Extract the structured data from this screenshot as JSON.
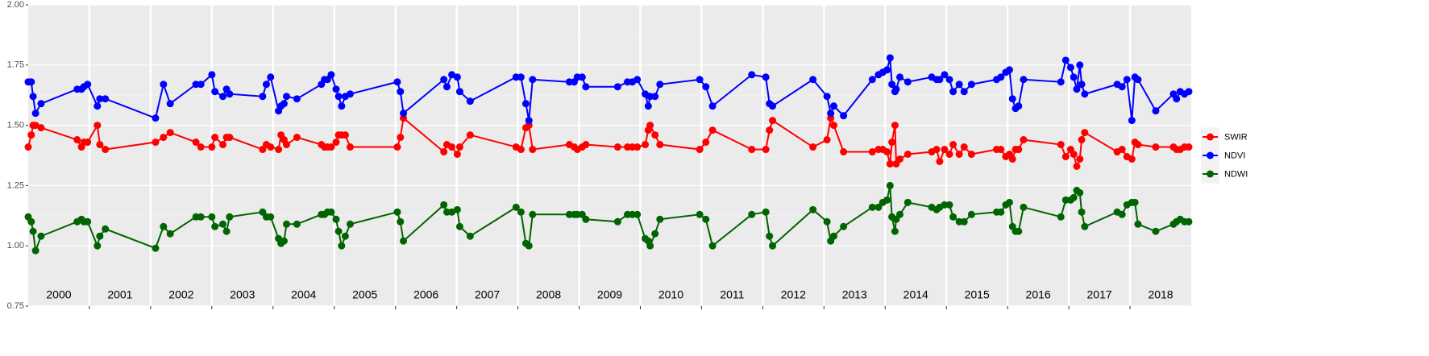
{
  "chart_data": {
    "type": "line",
    "x": [
      2000.0,
      2000.05,
      2000.08,
      2000.12,
      2000.21,
      2000.8,
      2000.87,
      2000.91,
      2000.97,
      2001.13,
      2001.17,
      2001.26,
      2002.08,
      2002.21,
      2002.32,
      2002.74,
      2002.82,
      2003.0,
      2003.05,
      2003.18,
      2003.24,
      2003.29,
      2003.83,
      2003.89,
      2003.96,
      2004.09,
      2004.13,
      2004.18,
      2004.22,
      2004.39,
      2004.79,
      2004.84,
      2004.89,
      2004.95,
      2005.03,
      2005.07,
      2005.12,
      2005.18,
      2005.26,
      2006.03,
      2006.08,
      2006.13,
      2006.79,
      2006.84,
      2006.92,
      2007.01,
      2007.05,
      2007.22,
      2007.97,
      2008.05,
      2008.13,
      2008.18,
      2008.24,
      2008.84,
      2008.92,
      2008.97,
      2009.05,
      2009.11,
      2009.63,
      2009.79,
      2009.87,
      2009.95,
      2010.08,
      2010.13,
      2010.16,
      2010.24,
      2010.32,
      2010.97,
      2011.07,
      2011.18,
      2011.82,
      2012.05,
      2012.11,
      2012.16,
      2012.82,
      2013.05,
      2013.11,
      2013.16,
      2013.32,
      2013.79,
      2013.89,
      2013.96,
      2014.03,
      2014.08,
      2014.11,
      2014.16,
      2014.18,
      2014.24,
      2014.37,
      2014.76,
      2014.84,
      2014.89,
      2014.97,
      2015.05,
      2015.11,
      2015.21,
      2015.29,
      2015.41,
      2015.82,
      2015.89,
      2015.97,
      2016.03,
      2016.08,
      2016.13,
      2016.18,
      2016.26,
      2016.87,
      2016.95,
      2017.03,
      2017.08,
      2017.13,
      2017.18,
      2017.21,
      2017.26,
      2017.79,
      2017.87,
      2017.95,
      2018.03,
      2018.08,
      2018.13,
      2018.42,
      2018.71,
      2018.76,
      2018.82,
      2018.89,
      2018.96
    ],
    "series": [
      {
        "name": "SWIR",
        "color": "#ff0000",
        "values": [
          1.41,
          1.46,
          1.5,
          1.5,
          1.49,
          1.44,
          1.41,
          1.43,
          1.43,
          1.5,
          1.42,
          1.4,
          1.43,
          1.45,
          1.47,
          1.43,
          1.41,
          1.41,
          1.45,
          1.42,
          1.45,
          1.45,
          1.4,
          1.42,
          1.41,
          1.4,
          1.46,
          1.44,
          1.42,
          1.45,
          1.42,
          1.41,
          1.41,
          1.41,
          1.43,
          1.46,
          1.46,
          1.46,
          1.41,
          1.41,
          1.45,
          1.53,
          1.39,
          1.42,
          1.41,
          1.38,
          1.41,
          1.46,
          1.41,
          1.4,
          1.49,
          1.5,
          1.4,
          1.42,
          1.41,
          1.4,
          1.41,
          1.42,
          1.41,
          1.41,
          1.41,
          1.41,
          1.42,
          1.48,
          1.5,
          1.46,
          1.42,
          1.4,
          1.43,
          1.48,
          1.4,
          1.4,
          1.48,
          1.52,
          1.41,
          1.44,
          1.53,
          1.5,
          1.39,
          1.39,
          1.4,
          1.4,
          1.39,
          1.34,
          1.43,
          1.5,
          1.34,
          1.36,
          1.38,
          1.39,
          1.4,
          1.35,
          1.4,
          1.38,
          1.42,
          1.38,
          1.41,
          1.38,
          1.4,
          1.4,
          1.37,
          1.38,
          1.36,
          1.4,
          1.4,
          1.44,
          1.42,
          1.37,
          1.4,
          1.38,
          1.33,
          1.36,
          1.44,
          1.47,
          1.39,
          1.4,
          1.37,
          1.36,
          1.43,
          1.42,
          1.41,
          1.41,
          1.4,
          1.4,
          1.41,
          1.41
        ]
      },
      {
        "name": "NDVI",
        "color": "#0000ff",
        "values": [
          1.68,
          1.68,
          1.62,
          1.55,
          1.59,
          1.65,
          1.65,
          1.66,
          1.67,
          1.58,
          1.61,
          1.61,
          1.53,
          1.67,
          1.59,
          1.67,
          1.67,
          1.71,
          1.64,
          1.62,
          1.65,
          1.63,
          1.62,
          1.67,
          1.7,
          1.56,
          1.58,
          1.59,
          1.62,
          1.61,
          1.67,
          1.69,
          1.69,
          1.71,
          1.65,
          1.62,
          1.58,
          1.62,
          1.63,
          1.68,
          1.64,
          1.55,
          1.69,
          1.66,
          1.71,
          1.7,
          1.64,
          1.6,
          1.7,
          1.7,
          1.59,
          1.52,
          1.69,
          1.68,
          1.68,
          1.7,
          1.7,
          1.66,
          1.66,
          1.68,
          1.68,
          1.69,
          1.63,
          1.58,
          1.62,
          1.62,
          1.67,
          1.69,
          1.66,
          1.58,
          1.71,
          1.7,
          1.59,
          1.58,
          1.69,
          1.62,
          1.55,
          1.58,
          1.54,
          1.69,
          1.71,
          1.72,
          1.73,
          1.78,
          1.67,
          1.64,
          1.65,
          1.7,
          1.68,
          1.7,
          1.69,
          1.69,
          1.71,
          1.69,
          1.64,
          1.67,
          1.64,
          1.67,
          1.69,
          1.7,
          1.72,
          1.73,
          1.61,
          1.57,
          1.58,
          1.69,
          1.68,
          1.77,
          1.74,
          1.7,
          1.65,
          1.75,
          1.67,
          1.63,
          1.67,
          1.66,
          1.69,
          1.52,
          1.7,
          1.69,
          1.56,
          1.63,
          1.61,
          1.64,
          1.63,
          1.64
        ]
      },
      {
        "name": "NDWI",
        "color": "#006400",
        "values": [
          1.12,
          1.1,
          1.06,
          0.98,
          1.04,
          1.1,
          1.11,
          1.1,
          1.1,
          1.0,
          1.04,
          1.07,
          0.99,
          1.08,
          1.05,
          1.12,
          1.12,
          1.12,
          1.08,
          1.09,
          1.06,
          1.12,
          1.14,
          1.12,
          1.12,
          1.03,
          1.01,
          1.02,
          1.09,
          1.09,
          1.13,
          1.13,
          1.14,
          1.14,
          1.11,
          1.06,
          1.0,
          1.04,
          1.09,
          1.14,
          1.1,
          1.02,
          1.17,
          1.14,
          1.14,
          1.15,
          1.08,
          1.04,
          1.16,
          1.14,
          1.01,
          1.0,
          1.13,
          1.13,
          1.13,
          1.13,
          1.13,
          1.11,
          1.1,
          1.13,
          1.13,
          1.13,
          1.03,
          1.02,
          1.0,
          1.05,
          1.11,
          1.13,
          1.11,
          1.0,
          1.13,
          1.14,
          1.04,
          1.0,
          1.15,
          1.1,
          1.02,
          1.04,
          1.08,
          1.16,
          1.16,
          1.18,
          1.19,
          1.25,
          1.12,
          1.06,
          1.11,
          1.13,
          1.18,
          1.16,
          1.15,
          1.16,
          1.17,
          1.17,
          1.12,
          1.1,
          1.1,
          1.13,
          1.14,
          1.14,
          1.17,
          1.18,
          1.08,
          1.06,
          1.06,
          1.16,
          1.12,
          1.19,
          1.19,
          1.2,
          1.23,
          1.22,
          1.14,
          1.08,
          1.14,
          1.13,
          1.17,
          1.18,
          1.18,
          1.09,
          1.06,
          1.09,
          1.1,
          1.11,
          1.1,
          1.1
        ]
      }
    ],
    "xlim": [
      2000,
      2019
    ],
    "xticks": [
      2001,
      2002,
      2003,
      2004,
      2005,
      2006,
      2007,
      2008,
      2009,
      2010,
      2011,
      2012,
      2013,
      2014,
      2015,
      2016,
      2017,
      2018
    ],
    "year_labels": [
      {
        "value": 2000.5,
        "label": "2000"
      },
      {
        "value": 2001.5,
        "label": "2001"
      },
      {
        "value": 2002.5,
        "label": "2002"
      },
      {
        "value": 2003.5,
        "label": "2003"
      },
      {
        "value": 2004.5,
        "label": "2004"
      },
      {
        "value": 2005.5,
        "label": "2005"
      },
      {
        "value": 2006.5,
        "label": "2006"
      },
      {
        "value": 2007.5,
        "label": "2007"
      },
      {
        "value": 2008.5,
        "label": "2008"
      },
      {
        "value": 2009.5,
        "label": "2009"
      },
      {
        "value": 2010.5,
        "label": "2010"
      },
      {
        "value": 2011.5,
        "label": "2011"
      },
      {
        "value": 2012.5,
        "label": "2012"
      },
      {
        "value": 2013.5,
        "label": "2013"
      },
      {
        "value": 2014.5,
        "label": "2014"
      },
      {
        "value": 2015.5,
        "label": "2015"
      },
      {
        "value": 2016.5,
        "label": "2016"
      },
      {
        "value": 2017.5,
        "label": "2017"
      },
      {
        "value": 2018.5,
        "label": "2018"
      }
    ],
    "ylim": [
      0.75,
      2.0
    ],
    "yticks": [
      {
        "value": 0.75,
        "label": "0.75"
      },
      {
        "value": 1.0,
        "label": "1.00"
      },
      {
        "value": 1.25,
        "label": "1.25"
      },
      {
        "value": 1.5,
        "label": "1.50"
      },
      {
        "value": 1.75,
        "label": "1.75"
      },
      {
        "value": 2.0,
        "label": "2.00"
      }
    ],
    "grid": true,
    "legend": "right"
  }
}
